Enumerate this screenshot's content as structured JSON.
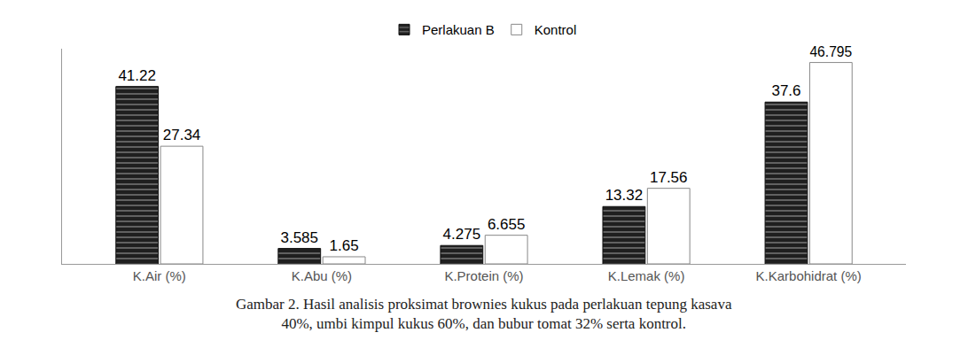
{
  "chart_data": {
    "type": "bar",
    "title": [
      "Gambar 2. Hasil analisis proksimat brownies kukus pada perlakuan tepung kasava",
      "40%, umbi kimpul kukus 60%, dan bubur tomat 32% serta kontrol."
    ],
    "categories": [
      "K.Air (%)",
      "K.Abu (%)",
      "K.Protein (%)",
      "K.Lemak (%)",
      "K.Karbohidrat (%)"
    ],
    "series": [
      {
        "name": "Perlakuan B",
        "color": "#1f1f1f",
        "marker": "striped",
        "values": [
          41.22,
          3.585,
          4.275,
          13.32,
          37.6
        ]
      },
      {
        "name": "Kontrol",
        "color": "#ffffff",
        "marker": "plain",
        "values": [
          27.34,
          1.65,
          6.655,
          17.56,
          46.795
        ]
      }
    ],
    "ylim": [
      0,
      50
    ],
    "data_labels": true,
    "tick_labels": "x",
    "grid": false,
    "legend": "top"
  }
}
